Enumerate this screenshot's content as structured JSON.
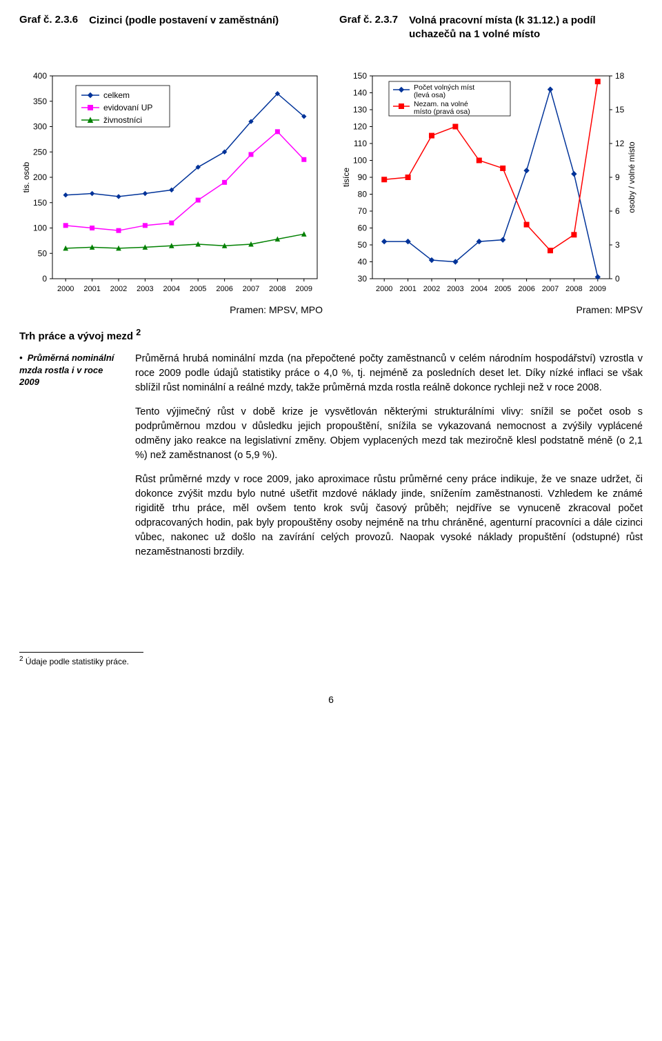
{
  "chart_left": {
    "number": "Graf č. 2.3.6",
    "title": "Cizinci (podle postavení v zaměstnání)",
    "source": "Pramen: MPSV, MPO",
    "ylabel": "tis. osob",
    "ylim": [
      0,
      400
    ],
    "ytick_step": 50,
    "xvalues": [
      "2000",
      "2001",
      "2002",
      "2003",
      "2004",
      "2005",
      "2006",
      "2007",
      "2008",
      "2009"
    ],
    "legend": {
      "celkem": {
        "label": "celkem",
        "color": "#003399",
        "marker": "diamond"
      },
      "evidovani": {
        "label": "evidovaní UP",
        "color": "#ff00ff",
        "marker": "square"
      },
      "zivnostnici": {
        "label": "živnostníci",
        "color": "#008000",
        "marker": "triangle"
      }
    },
    "series": {
      "celkem": [
        165,
        168,
        162,
        168,
        175,
        220,
        250,
        310,
        365,
        320
      ],
      "evidovani": [
        105,
        100,
        95,
        105,
        110,
        155,
        190,
        245,
        290,
        235
      ],
      "zivnostnici": [
        60,
        62,
        60,
        62,
        65,
        68,
        65,
        68,
        78,
        88
      ]
    },
    "background_color": "#ffffff",
    "grid_color": "#000000",
    "line_width": 1.5,
    "marker_size": 6
  },
  "chart_right": {
    "number": "Graf č. 2.3.7",
    "title": "Volná pracovní místa (k 31.12.) a podíl uchazečů na 1 volné místo",
    "source": "Pramen: MPSV",
    "ylabel_left": "tisíce",
    "ylabel_right": "osoby / volné místo",
    "ylim_left": [
      30,
      150
    ],
    "ytick_left_step": 10,
    "ylim_right": [
      0,
      18
    ],
    "ytick_right_step": 3,
    "xvalues": [
      "2000",
      "2001",
      "2002",
      "2003",
      "2004",
      "2005",
      "2006",
      "2007",
      "2008",
      "2009"
    ],
    "legend": {
      "volna": {
        "label": "Počet volných míst (levá osa)",
        "color": "#003399",
        "marker": "diamond"
      },
      "nezam": {
        "label": "Nezam. na volné místo (pravá osa)",
        "color": "#ff0000",
        "marker": "square"
      }
    },
    "series_left": {
      "volna": [
        52,
        52,
        41,
        40,
        52,
        53,
        94,
        142,
        92,
        31
      ]
    },
    "series_right": {
      "nezam": [
        8.8,
        9.0,
        12.7,
        13.5,
        10.5,
        9.8,
        4.8,
        2.5,
        3.9,
        17.5
      ]
    },
    "background_color": "#ffffff",
    "line_width": 1.5,
    "marker_size": 6
  },
  "section_heading": "Trh práce a vývoj mezd ",
  "section_heading_sup": "2",
  "margin_note": "Průměrná nominální mzda rostla i v roce 2009",
  "paragraphs": [
    "Průměrná hrubá nominální mzda (na přepočtené počty zaměstnanců v celém národním hospodářství) vzrostla v roce 2009 podle údajů statistiky práce o 4,0 %, tj. nejméně za posledních deset let. Díky nízké inflaci se však sblížil růst nominální a reálné mzdy, takže průměrná mzda rostla reálně dokonce rychleji než v roce 2008.",
    "Tento výjimečný růst v době krize je vysvětlován některými strukturálními vlivy: snížil se počet osob s podprůměrnou mzdou v důsledku jejich propouštění, snížila se vykazovaná nemocnost a zvýšily vyplácené odměny jako reakce na legislativní změny. Objem vyplacených mezd tak meziročně klesl podstatně méně (o 2,1 %) než zaměstnanost (o 5,9 %).",
    "Růst průměrné mzdy v roce 2009, jako aproximace růstu průměrné ceny práce indikuje, že ve snaze udržet, či dokonce zvýšit mzdu bylo nutné ušetřit mzdové náklady jinde, snížením zaměstnanosti. Vzhledem ke známé rigiditě trhu práce, měl ovšem tento krok svůj časový průběh; nejdříve se vynuceně zkracoval počet odpracovaných hodin, pak byly propouštěny osoby nejméně na trhu chráněné, agenturní pracovníci a dále cizinci vůbec, nakonec už došlo na zavírání celých provozů. Naopak vysoké náklady propuštění (odstupné) růst nezaměstnanosti brzdily."
  ],
  "footnote_marker": "2",
  "footnote_text": " Údaje podle statistiky práce.",
  "page_number": "6"
}
